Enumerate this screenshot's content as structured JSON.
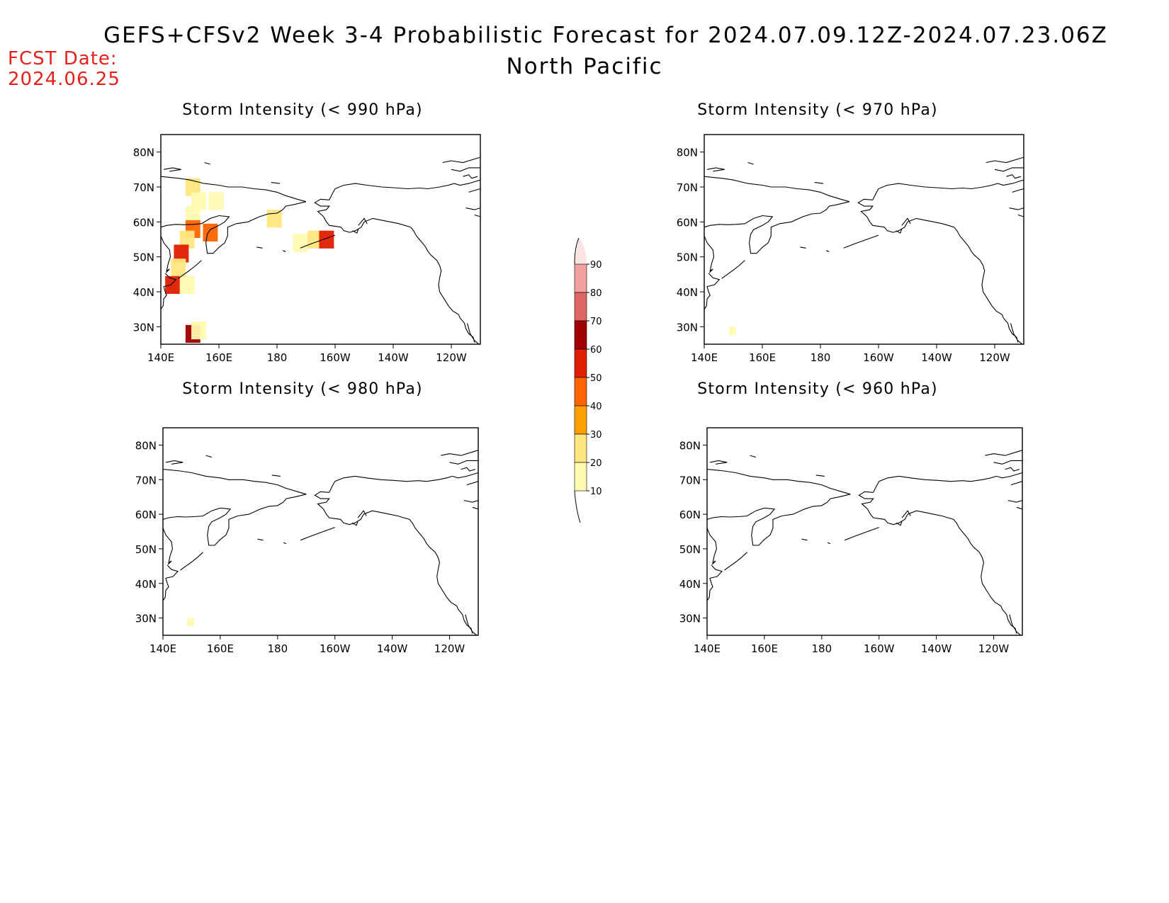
{
  "title": "GEFS+CFSv2 Week 3-4 Probabilistic Forecast for 2024.07.09.12Z-2024.07.23.06Z",
  "subtitle": "North Pacific",
  "fcst_label": "FCST Date:",
  "fcst_date": "2024.06.25",
  "panels": [
    {
      "title": "Storm Intensity (< 990 hPa)",
      "threshold": "990"
    },
    {
      "title": "Storm Intensity (< 970 hPa)",
      "threshold": "970"
    },
    {
      "title": "Storm Intensity (< 980 hPa)",
      "threshold": "980"
    },
    {
      "title": "Storm Intensity (< 960 hPa)",
      "threshold": "960"
    }
  ],
  "lat_ticks": [
    "80N",
    "70N",
    "60N",
    "50N",
    "40N",
    "30N"
  ],
  "lon_ticks": [
    "140E",
    "160E",
    "180",
    "160W",
    "140W",
    "120W"
  ],
  "colorbar": {
    "labels": [
      "90",
      "80",
      "70",
      "60",
      "50",
      "40",
      "30",
      "20",
      "10"
    ],
    "colors": [
      "#fbe3e3",
      "#f3a0a0",
      "#e06666",
      "#a00000",
      "#e01e00",
      "#ff6400",
      "#ffa000",
      "#ffe680",
      "#fffab0"
    ]
  },
  "prob_cells_990": [
    {
      "lon": 150,
      "lat": 71,
      "p": 25
    },
    {
      "lon": 152,
      "lat": 67,
      "p": 18
    },
    {
      "lon": 150,
      "lat": 63,
      "p": 15
    },
    {
      "lon": 150,
      "lat": 59,
      "p": 45
    },
    {
      "lon": 148,
      "lat": 56,
      "p": 20
    },
    {
      "lon": 146,
      "lat": 52,
      "p": 55
    },
    {
      "lon": 145,
      "lat": 48,
      "p": 20
    },
    {
      "lon": 143,
      "lat": 43,
      "p": 50
    },
    {
      "lon": 148,
      "lat": 43,
      "p": 18
    },
    {
      "lon": 158,
      "lat": 67,
      "p": 15
    },
    {
      "lon": 156,
      "lat": 58,
      "p": 45
    },
    {
      "lon": 178,
      "lat": 62,
      "p": 20
    },
    {
      "lon": 187,
      "lat": 55,
      "p": 15
    },
    {
      "lon": 192,
      "lat": 56,
      "p": 25
    },
    {
      "lon": 196,
      "lat": 56,
      "p": 50
    },
    {
      "lon": 150,
      "lat": 29,
      "p": 65
    },
    {
      "lon": 152,
      "lat": 30,
      "p": 12
    }
  ]
}
